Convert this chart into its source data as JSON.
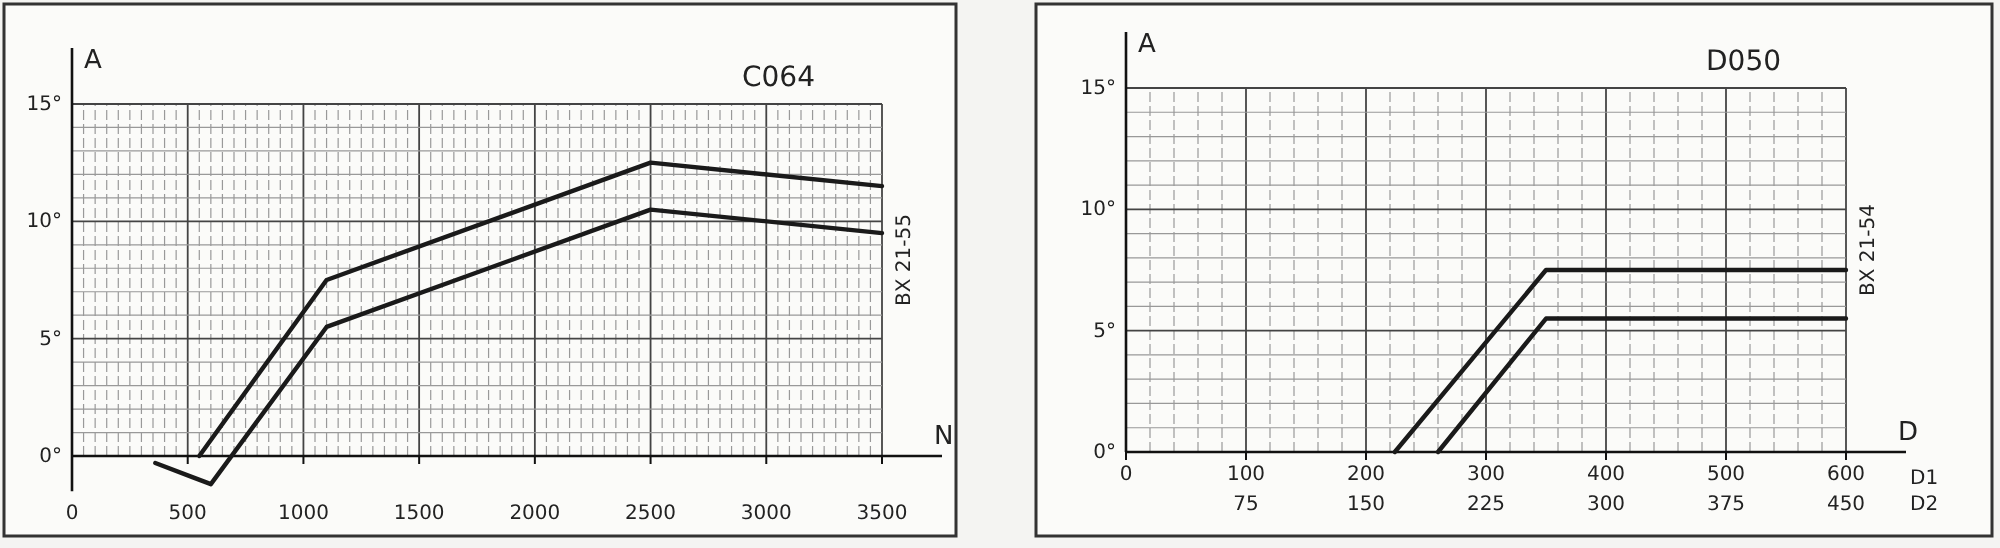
{
  "chart_data": [
    {
      "type": "line",
      "title": "C064",
      "xlabel": "N",
      "ylabel": "A",
      "annotations": [
        "BX 21-55"
      ],
      "xlim": [
        0,
        3500
      ],
      "ylim": [
        -1.5,
        15
      ],
      "xticks": [
        0,
        {
          "value": 50,
          "label": null
        },
        {
          "value": 100,
          "label": null
        },
        {
          "value": 150,
          "label": null
        },
        {
          "value": 200,
          "label": null
        },
        {
          "value": 250,
          "label": null
        },
        {
          "value": 300,
          "label": null
        },
        {
          "value": 350,
          "label": null
        },
        {
          "value": 400,
          "label": null
        },
        {
          "value": 450,
          "label": null
        },
        500,
        {
          "value": 550,
          "label": null
        },
        {
          "value": 600,
          "label": null
        },
        {
          "value": 650,
          "label": null
        },
        {
          "value": 700,
          "label": null
        },
        {
          "value": 750,
          "label": null
        },
        {
          "value": 800,
          "label": null
        },
        {
          "value": 850,
          "label": null
        },
        {
          "value": 900,
          "label": null
        },
        {
          "value": 950,
          "label": null
        },
        1000,
        {
          "value": 1050,
          "label": null
        },
        {
          "value": 1100,
          "label": null
        },
        {
          "value": 1150,
          "label": null
        },
        {
          "value": 1200,
          "label": null
        },
        {
          "value": 1250,
          "label": null
        },
        {
          "value": 1300,
          "label": null
        },
        {
          "value": 1350,
          "label": null
        },
        {
          "value": 1400,
          "label": null
        },
        {
          "value": 1450,
          "label": null
        },
        1500,
        {
          "value": 1550,
          "label": null
        },
        {
          "value": 1600,
          "label": null
        },
        {
          "value": 1650,
          "label": null
        },
        {
          "value": 1700,
          "label": null
        },
        {
          "value": 1750,
          "label": null
        },
        {
          "value": 1800,
          "label": null
        },
        {
          "value": 1850,
          "label": null
        },
        {
          "value": 1900,
          "label": null
        },
        {
          "value": 1950,
          "label": null
        },
        2000,
        {
          "value": 2050,
          "label": null
        },
        {
          "value": 2100,
          "label": null
        },
        {
          "value": 2150,
          "label": null
        },
        {
          "value": 2200,
          "label": null
        },
        {
          "value": 2250,
          "label": null
        },
        {
          "value": 2300,
          "label": null
        },
        {
          "value": 2350,
          "label": null
        },
        {
          "value": 2400,
          "label": null
        },
        {
          "value": 2450,
          "label": null
        },
        2500,
        {
          "value": 2550,
          "label": null
        },
        {
          "value": 2600,
          "label": null
        },
        {
          "value": 2650,
          "label": null
        },
        {
          "value": 2700,
          "label": null
        },
        {
          "value": 2750,
          "label": null
        },
        {
          "value": 2800,
          "label": null
        },
        {
          "value": 2850,
          "label": null
        },
        {
          "value": 2900,
          "label": null
        },
        {
          "value": 2950,
          "label": null
        },
        3000,
        {
          "value": 3050,
          "label": null
        },
        {
          "value": 3100,
          "label": null
        },
        {
          "value": 3150,
          "label": null
        },
        {
          "value": 3200,
          "label": null
        },
        {
          "value": 3250,
          "label": null
        },
        {
          "value": 3300,
          "label": null
        },
        {
          "value": 3350,
          "label": null
        },
        {
          "value": 3400,
          "label": null
        },
        {
          "value": 3450,
          "label": null
        },
        3500
      ],
      "yticks": [
        {
          "value": 0,
          "label": "0°"
        },
        {
          "value": 1,
          "label": null
        },
        {
          "value": 2,
          "label": null
        },
        {
          "value": 3,
          "label": null
        },
        {
          "value": 4,
          "label": null
        },
        {
          "value": 5,
          "label": "5°"
        },
        {
          "value": 6,
          "label": null
        },
        {
          "value": 7,
          "label": null
        },
        {
          "value": 8,
          "label": null
        },
        {
          "value": 9,
          "label": null
        },
        {
          "value": 10,
          "label": "10°"
        },
        {
          "value": 11,
          "label": null
        },
        {
          "value": 12,
          "label": null
        },
        {
          "value": 13,
          "label": null
        },
        {
          "value": 14,
          "label": null
        },
        {
          "value": 15,
          "label": "15°"
        }
      ],
      "grid": true,
      "line_style": "solid",
      "marker": "none",
      "series": [
        {
          "color": "#1a1a1a",
          "x": [
            550,
            1100,
            2500,
            3500
          ],
          "values": [
            0,
            7.5,
            12.5,
            11.5
          ]
        },
        {
          "color": "#1a1a1a",
          "x": [
            360,
            520,
            600,
            1100,
            2500,
            3500
          ],
          "values": [
            -0.3,
            -0.9,
            -1.2,
            5.5,
            10.5,
            9.5
          ]
        }
      ]
    },
    {
      "type": "line",
      "title": "D050",
      "xlabel": "D",
      "ylabel": "A",
      "x2label": "D2",
      "annotations": [
        "BX 21-54",
        "D1"
      ],
      "xlim": [
        0,
        600
      ],
      "ylim": [
        0,
        15
      ],
      "x2lim": [
        0,
        450
      ],
      "xticks": [
        0,
        {
          "value": 20,
          "label": null
        },
        {
          "value": 40,
          "label": null
        },
        {
          "value": 60,
          "label": null
        },
        {
          "value": 80,
          "label": null
        },
        100,
        {
          "value": 120,
          "label": null
        },
        {
          "value": 140,
          "label": null
        },
        {
          "value": 160,
          "label": null
        },
        {
          "value": 180,
          "label": null
        },
        200,
        {
          "value": 220,
          "label": null
        },
        {
          "value": 240,
          "label": null
        },
        {
          "value": 260,
          "label": null
        },
        {
          "value": 280,
          "label": null
        },
        300,
        {
          "value": 320,
          "label": null
        },
        {
          "value": 340,
          "label": null
        },
        {
          "value": 360,
          "label": null
        },
        {
          "value": 380,
          "label": null
        },
        400,
        {
          "value": 420,
          "label": null
        },
        {
          "value": 440,
          "label": null
        },
        {
          "value": 460,
          "label": null
        },
        {
          "value": 480,
          "label": null
        },
        500,
        {
          "value": 520,
          "label": null
        },
        {
          "value": 540,
          "label": null
        },
        {
          "value": 560,
          "label": null
        },
        {
          "value": 580,
          "label": null
        },
        600
      ],
      "x2ticks": [
        75,
        150,
        225,
        300,
        375,
        450
      ],
      "yticks": [
        {
          "value": 0,
          "label": "0°"
        },
        {
          "value": 1,
          "label": null
        },
        {
          "value": 2,
          "label": null
        },
        {
          "value": 3,
          "label": null
        },
        {
          "value": 4,
          "label": null
        },
        {
          "value": 5,
          "label": "5°"
        },
        {
          "value": 6,
          "label": null
        },
        {
          "value": 7,
          "label": null
        },
        {
          "value": 8,
          "label": null
        },
        {
          "value": 9,
          "label": null
        },
        {
          "value": 10,
          "label": "10°"
        },
        {
          "value": 11,
          "label": null
        },
        {
          "value": 12,
          "label": null
        },
        {
          "value": 13,
          "label": null
        },
        {
          "value": 14,
          "label": null
        },
        {
          "value": 15,
          "label": "15°"
        }
      ],
      "grid": true,
      "line_style": "solid",
      "marker": "none",
      "series": [
        {
          "color": "#1a1a1a",
          "x": [
            224,
            350,
            600
          ],
          "values": [
            0,
            7.5,
            7.5
          ]
        },
        {
          "color": "#1a1a1a",
          "x": [
            260,
            350,
            600
          ],
          "values": [
            0,
            5.5,
            5.5
          ]
        }
      ]
    }
  ]
}
